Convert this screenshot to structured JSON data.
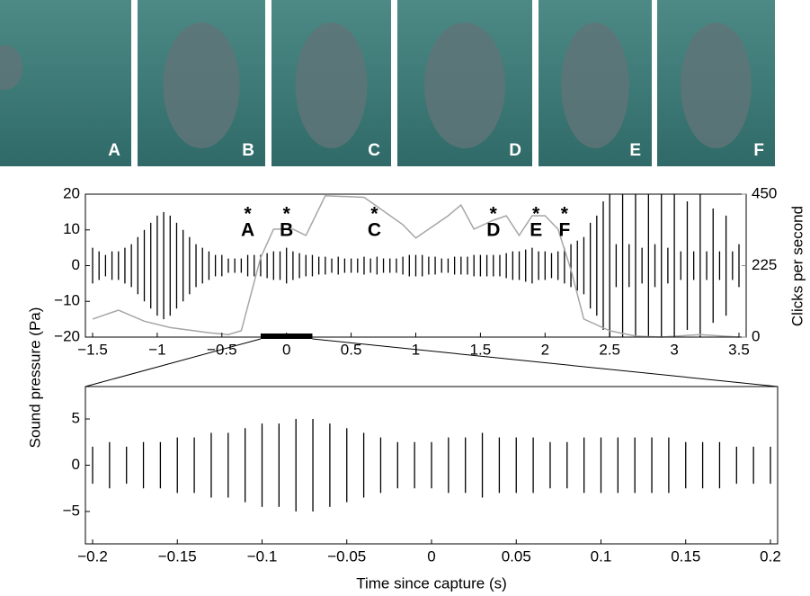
{
  "photos": {
    "labels": [
      "A",
      "B",
      "C",
      "D",
      "E",
      "F"
    ]
  },
  "chart_data": [
    {
      "type": "waveform",
      "ylabel": "Sound pressure (Pa)",
      "y2label": "Clicks per second",
      "xlim": [
        -1.5,
        3.5
      ],
      "xticks": [
        {
          "value": -1.5,
          "label": "−1.5"
        },
        {
          "value": -1,
          "label": "−1"
        },
        {
          "value": -0.5,
          "label": "−0.5"
        },
        0,
        0.5,
        1,
        1.5,
        2,
        2.5,
        3,
        3.5
      ],
      "ylim": [
        -20,
        20
      ],
      "yticks": [
        {
          "value": -20,
          "label": "−20"
        },
        {
          "value": -10,
          "label": "−10"
        },
        0,
        10,
        20
      ],
      "y2lim": [
        0,
        450
      ],
      "y2ticks": [
        0,
        225,
        450
      ],
      "annotation_marker": "*",
      "annotations": [
        {
          "x": -0.3,
          "label": "A"
        },
        {
          "x": 0.0,
          "label": "B"
        },
        {
          "x": 0.68,
          "label": "C"
        },
        {
          "x": 1.6,
          "label": "D"
        },
        {
          "x": 1.93,
          "label": "E"
        },
        {
          "x": 2.15,
          "label": "F"
        }
      ],
      "series": [
        {
          "color": "#000000",
          "style": "envelope",
          "x": [
            -1.5,
            -1.45,
            -1.4,
            -1.35,
            -1.3,
            -1.25,
            -1.2,
            -1.15,
            -1.1,
            -1.05,
            -1.0,
            -0.95,
            -0.9,
            -0.85,
            -0.8,
            -0.75,
            -0.7,
            -0.65,
            -0.6,
            -0.55,
            -0.5,
            -0.45,
            -0.4,
            -0.35,
            -0.3,
            -0.25,
            -0.2,
            -0.15,
            -0.1,
            -0.05,
            0,
            0.05,
            0.1,
            0.15,
            0.2,
            0.25,
            0.3,
            0.35,
            0.4,
            0.45,
            0.5,
            0.55,
            0.6,
            0.65,
            0.7,
            0.75,
            0.8,
            0.85,
            0.9,
            0.95,
            1.0,
            1.05,
            1.1,
            1.15,
            1.2,
            1.25,
            1.3,
            1.35,
            1.4,
            1.45,
            1.5,
            1.55,
            1.6,
            1.65,
            1.7,
            1.75,
            1.8,
            1.85,
            1.9,
            1.95,
            2.0,
            2.05,
            2.1,
            2.15,
            2.2,
            2.25,
            2.3,
            2.35,
            2.4,
            2.45,
            2.5,
            2.55,
            2.6,
            2.65,
            2.7,
            2.75,
            2.8,
            2.85,
            2.9,
            2.95,
            3.0,
            3.05,
            3.1,
            3.15,
            3.2,
            3.25,
            3.3,
            3.35,
            3.4,
            3.45,
            3.5
          ],
          "values": [
            5,
            4,
            3,
            4,
            4,
            5,
            6,
            8,
            10,
            12,
            14,
            15,
            14,
            12,
            10,
            8,
            6,
            5,
            4,
            3,
            3,
            2,
            2,
            2,
            3,
            3,
            3,
            3.5,
            4,
            4,
            5,
            4,
            3.5,
            3,
            3,
            2.5,
            2.5,
            2,
            2.5,
            2,
            2,
            2,
            2.5,
            2,
            2.5,
            2,
            2,
            2,
            2.5,
            3,
            3,
            3,
            2.5,
            2.5,
            2,
            2,
            2.5,
            2.5,
            2.5,
            3,
            3,
            3,
            3,
            3,
            3.5,
            4,
            4,
            4.5,
            5,
            4,
            4,
            3.5,
            4,
            5,
            6,
            7,
            8,
            12,
            14,
            18,
            20,
            6,
            20,
            6,
            20,
            5,
            20,
            6,
            20,
            5,
            20,
            4,
            18,
            4,
            20,
            4,
            16,
            4,
            14,
            4,
            6
          ]
        },
        {
          "color": "#a6a6a6",
          "axis": "y2",
          "style": "line",
          "x": [
            -1.5,
            -1.3,
            -1.1,
            -0.9,
            -0.6,
            -0.45,
            -0.35,
            -0.2,
            -0.1,
            0.05,
            0.15,
            0.3,
            0.6,
            0.75,
            0.9,
            1.0,
            1.1,
            1.25,
            1.35,
            1.45,
            1.6,
            1.7,
            1.8,
            1.9,
            2.0,
            2.1,
            2.2,
            2.3,
            2.5,
            2.7,
            2.9,
            3.2,
            3.5
          ],
          "values": [
            57,
            85,
            50,
            30,
            14,
            8,
            20,
            250,
            340,
            340,
            320,
            445,
            440,
            397,
            354,
            312,
            340,
            382,
            416,
            340,
            368,
            382,
            320,
            382,
            382,
            340,
            212,
            57,
            20,
            3,
            0,
            8,
            0
          ]
        }
      ]
    },
    {
      "type": "waveform",
      "xlabel": "Time since capture (s)",
      "xlim": [
        -0.2,
        0.2
      ],
      "xticks": [
        {
          "value": -0.2,
          "label": "−0.2"
        },
        {
          "value": -0.15,
          "label": "−0.15"
        },
        {
          "value": -0.1,
          "label": "−0.1"
        },
        {
          "value": -0.05,
          "label": "−0.05"
        },
        0,
        0.05,
        0.1,
        0.15,
        0.2
      ],
      "ylim": [
        -8.5,
        8.5
      ],
      "yticks": [
        {
          "value": -5,
          "label": "−5"
        },
        0,
        5
      ],
      "series": [
        {
          "color": "#000000",
          "style": "envelope",
          "x": [
            -0.2,
            -0.19,
            -0.18,
            -0.17,
            -0.16,
            -0.15,
            -0.14,
            -0.13,
            -0.12,
            -0.11,
            -0.1,
            -0.09,
            -0.08,
            -0.07,
            -0.06,
            -0.05,
            -0.04,
            -0.03,
            -0.02,
            -0.01,
            0,
            0.01,
            0.02,
            0.03,
            0.04,
            0.05,
            0.06,
            0.07,
            0.08,
            0.09,
            0.1,
            0.11,
            0.12,
            0.13,
            0.14,
            0.15,
            0.16,
            0.17,
            0.18,
            0.19,
            0.2
          ],
          "values": [
            2,
            2.5,
            2,
            2.5,
            2.5,
            3,
            3,
            3.5,
            3.5,
            4,
            4.5,
            4.5,
            5,
            5,
            4.5,
            4,
            3.5,
            3,
            2.5,
            2.5,
            2.5,
            3,
            3,
            3.5,
            3,
            3,
            3,
            2.5,
            2.5,
            3,
            3,
            3,
            3,
            3,
            3,
            2.5,
            2.5,
            2.5,
            2,
            2,
            2
          ]
        }
      ]
    }
  ]
}
